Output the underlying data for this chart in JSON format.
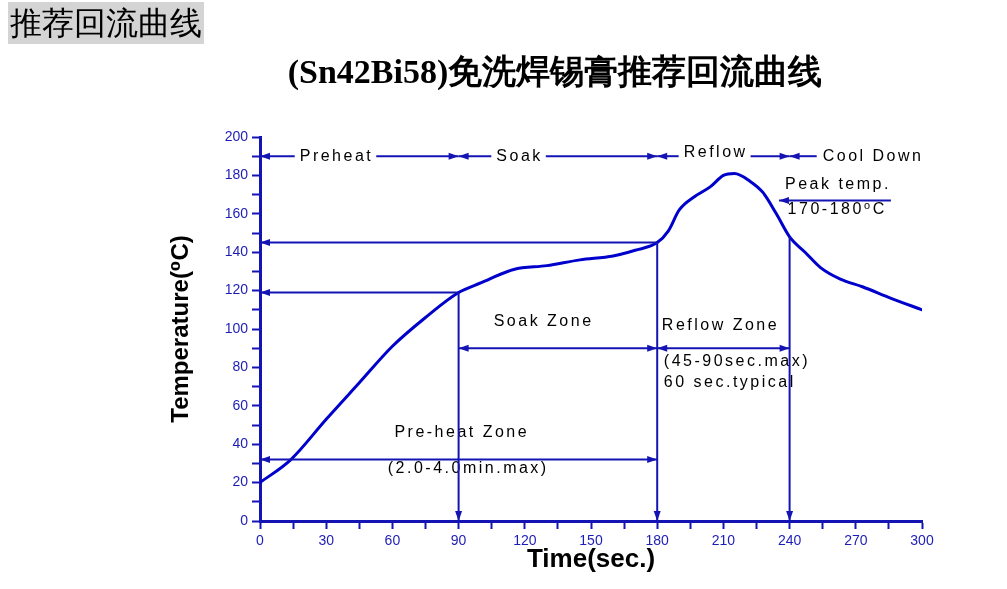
{
  "chart_data": {
    "type": "line",
    "title": "推荐回流曲线",
    "subtitle": "(Sn42Bi58)免洗焊锡膏推荐回流曲线",
    "xlabel": "Time(sec.)",
    "ylabel": "Temperature(⁰C)",
    "x": [
      0,
      14,
      30,
      45,
      60,
      75,
      90,
      100,
      115,
      130,
      145,
      160,
      170,
      180,
      185,
      190,
      197,
      204,
      210,
      215,
      222,
      228,
      234,
      240,
      247,
      254,
      263,
      273,
      286,
      300
    ],
    "series": [
      {
        "color": "#0000cc",
        "values": [
          20,
          32,
          53,
          72,
          91,
          106,
          119,
          124,
          131,
          133,
          136,
          138,
          141,
          145,
          151,
          162,
          169,
          174,
          180,
          181,
          177,
          171,
          160,
          148,
          140,
          132,
          126,
          122,
          116,
          110
        ]
      }
    ],
    "xlim": [
      0,
      300
    ],
    "ylim": [
      0,
      200
    ],
    "xticks": [
      0,
      {
        "value": 15,
        "label": null
      },
      30,
      {
        "value": 45,
        "label": null
      },
      60,
      {
        "value": 75,
        "label": null
      },
      90,
      {
        "value": 105,
        "label": null
      },
      120,
      {
        "value": 135,
        "label": null
      },
      150,
      {
        "value": 165,
        "label": null
      },
      180,
      {
        "value": 195,
        "label": null
      },
      210,
      {
        "value": 225,
        "label": null
      },
      240,
      {
        "value": 255,
        "label": null
      },
      270,
      {
        "value": 285,
        "label": null
      },
      300
    ],
    "yticks": [
      0,
      {
        "value": 10,
        "label": null
      },
      20,
      {
        "value": 30,
        "label": null
      },
      40,
      {
        "value": 50,
        "label": null
      },
      60,
      {
        "value": 70,
        "label": null
      },
      80,
      {
        "value": 90,
        "label": null
      },
      100,
      {
        "value": 110,
        "label": null
      },
      120,
      {
        "value": 130,
        "label": null
      },
      140,
      {
        "value": 150,
        "label": null
      },
      160,
      {
        "value": 170,
        "label": null
      },
      180,
      {
        "value": 190,
        "label": null
      },
      200
    ],
    "line_style": "solid",
    "annotations": [
      "Preheat",
      "Soak",
      "Reflow",
      "Cool Down",
      "Peak temp.",
      "170-180⁰C",
      "Soak Zone",
      "Reflow Zone",
      "(45-90sec.max)",
      "60 sec.typical",
      "Pre-heat Zone",
      "(2.0-4.0min.max)"
    ]
  }
}
